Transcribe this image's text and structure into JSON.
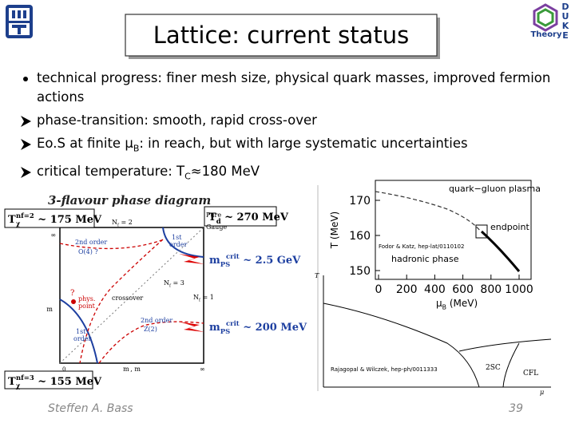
{
  "header": {
    "title": "Lattice: current status"
  },
  "logo": {
    "letters": [
      "D",
      "U",
      "K",
      "E"
    ],
    "caption": "Theory"
  },
  "bullets": [
    {
      "parts": [
        "technical progress: finer mesh size, physical quark masses, improved fermion actions"
      ]
    },
    {
      "parts": [
        "phase-transition: smooth, rapid cross-over"
      ]
    },
    {
      "parts": [
        "Eo.S at finite μ",
        "B",
        ": in reach, but with large systematic uncertainties"
      ]
    },
    {
      "parts": [
        "critical temperature: T",
        "C",
        "≈180 MeV"
      ]
    }
  ],
  "phase_diagram": {
    "title": "3-flavour phase diagram",
    "t_chi_2": {
      "base": "T",
      "sub": "χ",
      "sup": "nf=2",
      "rest": " ~ 175 MeV"
    },
    "nf2": {
      "base": "N",
      "sub": "f",
      "rest": " = 2"
    },
    "pure": "Pure",
    "gauge": "Gauge",
    "t_d": {
      "base": "T",
      "sub": "d",
      "rest": " ~ 270 MeV"
    },
    "inf_y": "∞",
    "second_order_a": "2nd order",
    "o4": "O(4) ?",
    "first_a": "1st",
    "order_a": "order",
    "m_crit_1": {
      "base": "m",
      "sub": "PS",
      "sup": "crit",
      "rest": " ~ 2.5 GeV"
    },
    "nf3": {
      "base": "N",
      "sub": "f",
      "rest": " = 3"
    },
    "q_mark": "?",
    "phys": "phys.",
    "point": "point",
    "crossover": "crossover",
    "nf1": {
      "base": "N",
      "sub": "f",
      "rest": " = 1"
    },
    "second_order_b": "2nd order",
    "z2": "Z(2)",
    "first_b": "1st",
    "order_b": "order",
    "m_crit_2": {
      "base": "m",
      "sub": "PS",
      "sup": "crit",
      "rest": " ~ 200 MeV"
    },
    "zero": "0",
    "axis_x": "m , m",
    "inf_x": "∞",
    "axis_y": "m",
    "t_chi_3": {
      "base": "T",
      "sub": "χ",
      "sup": "nf=3",
      "rest": " ~ 155 MeV"
    }
  },
  "lattice_plot": {
    "ylabel": "T (MeV)",
    "yticks": [
      150,
      160,
      170
    ],
    "xticks": [
      0,
      200,
      400,
      600,
      800,
      1000
    ],
    "xlabel": {
      "base": "μ",
      "sub": "B",
      "rest": " (MeV)"
    },
    "qgp": "quark−gluon plasma",
    "hadronic": "hadronic phase",
    "endpoint": "endpoint",
    "ref": "Fodor & Katz, hep-lat/0110102"
  },
  "csc_plot": {
    "t": "T",
    "mu": "μ",
    "sc2": "2SC",
    "cfl": "CFL",
    "ref": "Rajagopal & Wilczek, hep-ph/0011333"
  },
  "footer": {
    "author": "Steffen A. Bass",
    "page": "39"
  }
}
